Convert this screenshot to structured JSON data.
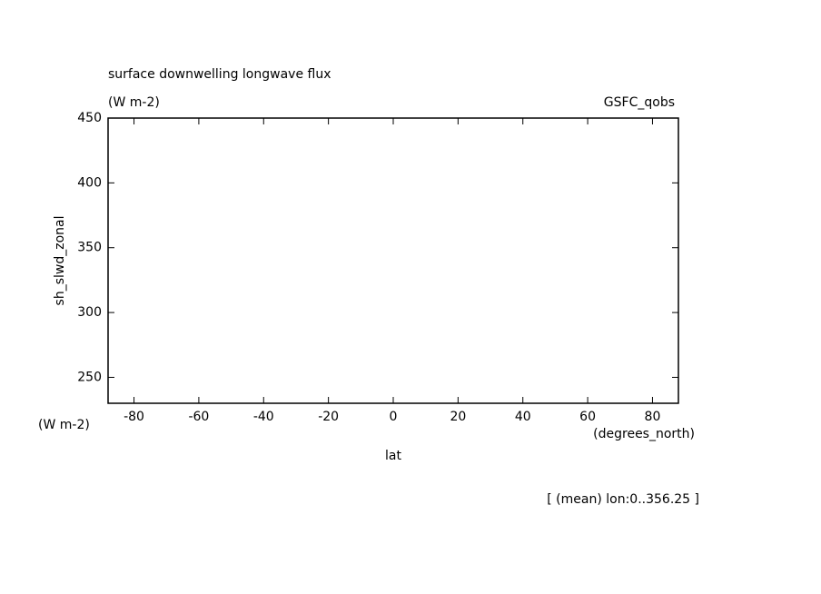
{
  "chart_data": {
    "type": "line",
    "title": "surface downwelling longwave flux",
    "subtitle": "(W m-2)",
    "dataset": "GSFC_qobs",
    "y_label": "sh_slwd_zonal",
    "y_units": "(W m-2)",
    "x_label": "lat",
    "x_units": "(degrees_north)",
    "footnote": "[ (mean) lon:0..356.25 ]",
    "series": [],
    "xlim": [
      -88,
      88
    ],
    "xticks": [
      -80,
      -60,
      -40,
      -20,
      0,
      20,
      40,
      60,
      80
    ],
    "ylim": [
      230,
      450
    ],
    "yticks": [
      250,
      300,
      350,
      400,
      450
    ]
  }
}
